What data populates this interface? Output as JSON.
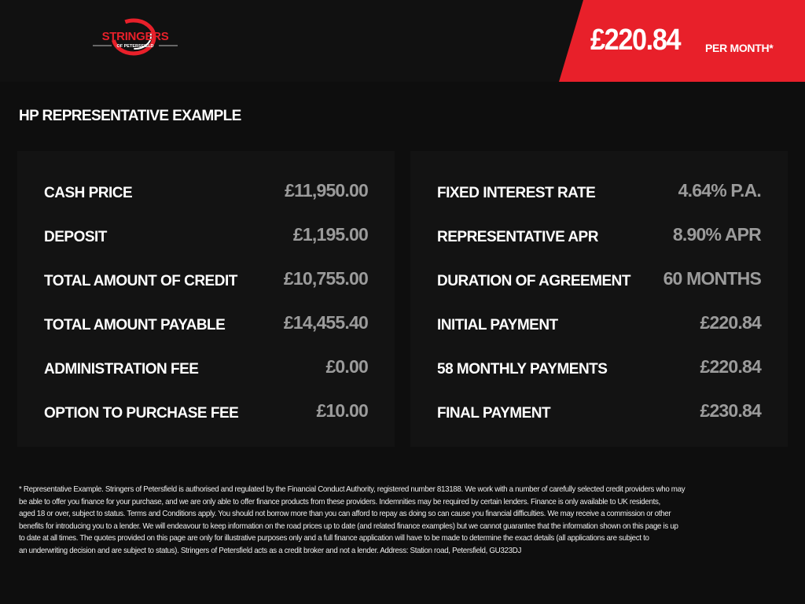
{
  "brand": {
    "logo_text": "STRINGERS",
    "logo_subtext": "OF PETERSFIELD",
    "accent": "#e8202a"
  },
  "banner": {
    "price": "£220.84",
    "per_month": "PER MONTH*"
  },
  "title": "HP REPRESENTATIVE EXAMPLE",
  "left": [
    {
      "label": "CASH PRICE",
      "value": "£11,950.00"
    },
    {
      "label": "DEPOSIT",
      "value": "£1,195.00"
    },
    {
      "label": "TOTAL AMOUNT OF CREDIT",
      "value": "£10,755.00"
    },
    {
      "label": "TOTAL AMOUNT PAYABLE",
      "value": "£14,455.40"
    },
    {
      "label": "ADMINISTRATION FEE",
      "value": "£0.00"
    },
    {
      "label": "OPTION TO PURCHASE FEE",
      "value": "£10.00"
    }
  ],
  "right": [
    {
      "label": "FIXED INTEREST RATE",
      "value": "4.64% P.A."
    },
    {
      "label": "REPRESENTATIVE APR",
      "value": "8.90% APR"
    },
    {
      "label": "DURATION OF AGREEMENT",
      "value": "60 MONTHS"
    },
    {
      "label": "INITIAL PAYMENT",
      "value": "£220.84"
    },
    {
      "label": "58 MONTHLY PAYMENTS",
      "value": "£220.84"
    },
    {
      "label": "FINAL PAYMENT",
      "value": "£230.84"
    }
  ],
  "disclaimer": [
    "* Representative Example. Stringers of Petersfield is authorised and regulated by the Financial Conduct Authority, registered number 813188. We work with a number of carefully selected credit providers who may",
    "be able to offer you finance for your purchase, and we are only able to offer finance products from these providers. Indemnities may be required by certain lenders. Finance is only available to UK residents,",
    "aged 18 or over, subject to status. Terms and Conditions apply. You should not borrow more than you can afford to repay as doing so can cause you financial difficulties. We may receive a commission or other",
    "benefits for introducing you to a lender. We will endeavour to keep information on the road prices up to date (and related finance examples) but we cannot guarantee that the information shown on this page is up",
    "to date at all times. The quotes provided on this page are only for illustrative purposes only and a full finance application will have to be made to determine the exact details (all applications are subject to",
    "an underwriting decision and are subject to status). Stringers of Petersfield acts as a credit broker and not a lender. Address: Station road, Petersfield, GU323DJ"
  ]
}
